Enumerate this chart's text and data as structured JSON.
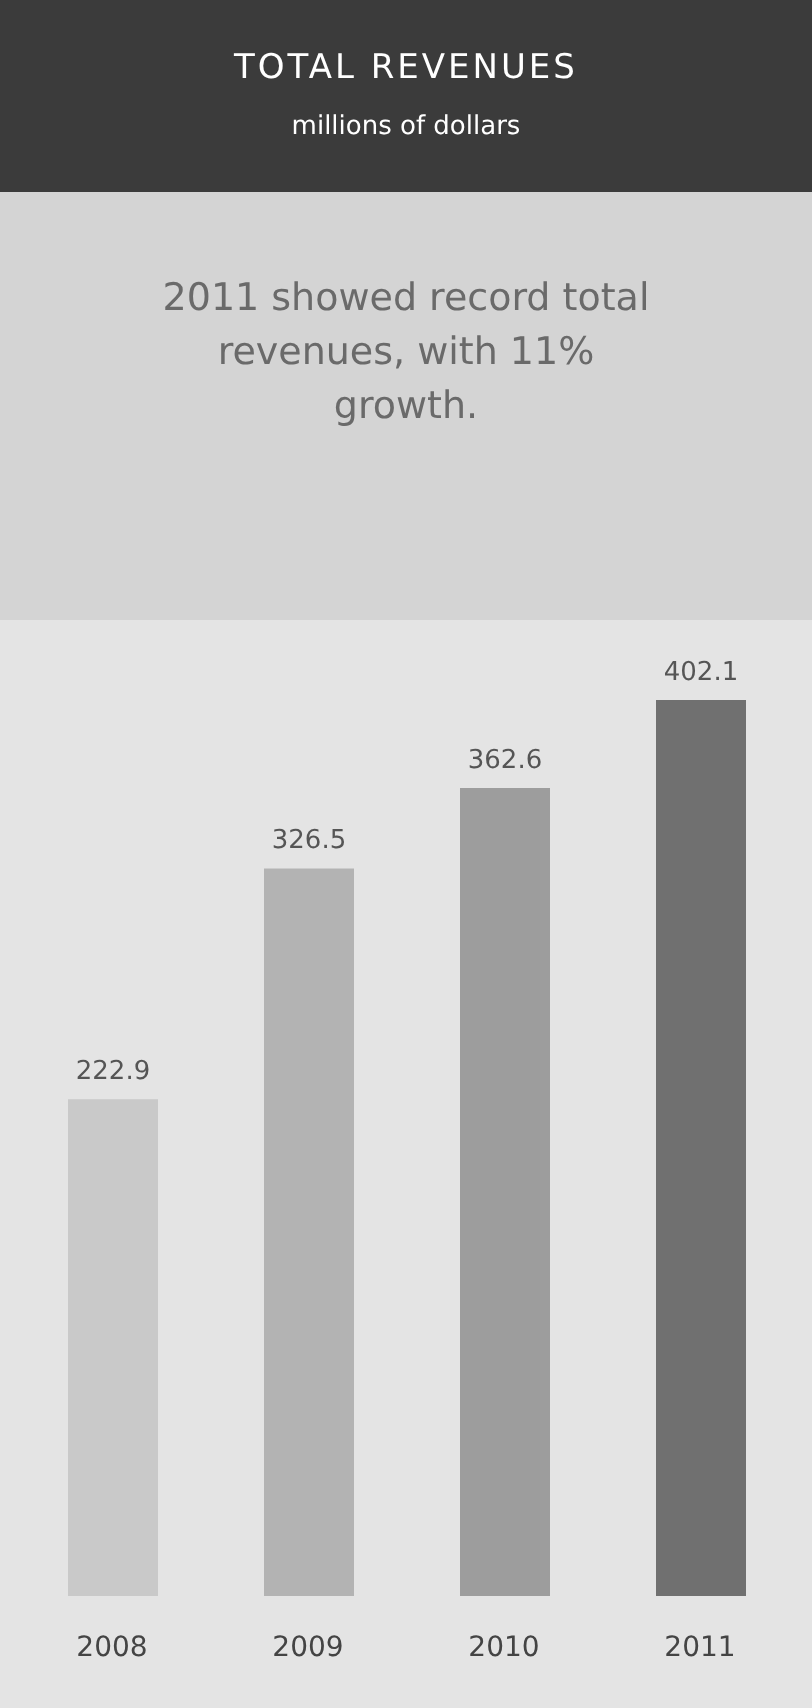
{
  "chart_data": {
    "type": "bar",
    "title": "TOTAL REVENUES",
    "subtitle": "millions of dollars",
    "annotations": [
      "2011 showed record total revenues, with 11% growth."
    ],
    "categories": [
      "2008",
      "2009",
      "2010",
      "2011"
    ],
    "values": [
      222.9,
      326.5,
      362.6,
      402.1
    ],
    "colors": [
      "#c9c9c9",
      "#b3b3b3",
      "#9d9d9d",
      "#707070"
    ],
    "data_labels": true
  }
}
